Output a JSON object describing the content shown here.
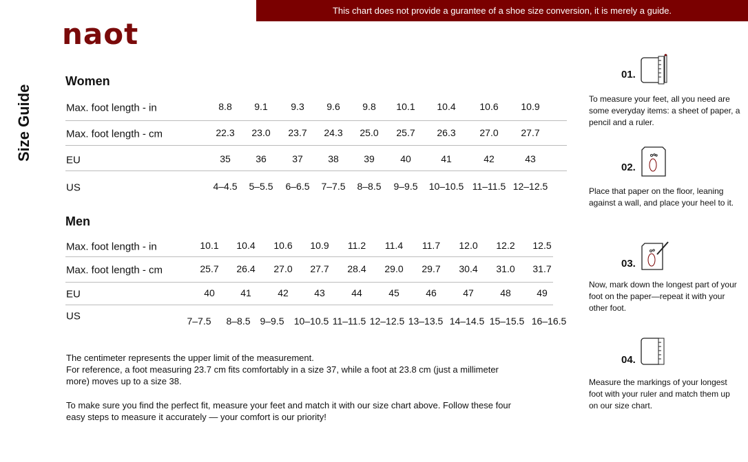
{
  "banner": "This chart does not provide a gurantee of a shoe size conversion, it is merely a guide.",
  "logo": "Naot",
  "title": "Size Guide",
  "colors": {
    "brand": "#7a0000"
  },
  "women": {
    "heading": "Women",
    "rows": [
      {
        "label": "Max. foot length - in",
        "values": [
          "8.8",
          "9.1",
          "9.3",
          "9.6",
          "9.8",
          "10.1",
          "10.4",
          "10.6",
          "10.9"
        ]
      },
      {
        "label": "Max. foot length - cm",
        "values": [
          "22.3",
          "23.0",
          "23.7",
          "24.3",
          "25.0",
          "25.7",
          "26.3",
          "27.0",
          "27.7"
        ]
      },
      {
        "label": "EU",
        "values": [
          "35",
          "36",
          "37",
          "38",
          "39",
          "40",
          "41",
          "42",
          "43"
        ]
      },
      {
        "label": "US",
        "values": [
          "4–4.5",
          "5–5.5",
          "6–6.5",
          "7–7.5",
          "8–8.5",
          "9–9.5",
          "10–10.5",
          "11–11.5",
          "12–12.5"
        ]
      }
    ]
  },
  "men": {
    "heading": "Men",
    "rows": [
      {
        "label": "Max. foot length - in",
        "values": [
          "10.1",
          "10.4",
          "10.6",
          "10.9",
          "11.2",
          "11.4",
          "11.7",
          "12.0",
          "12.2",
          "12.5"
        ]
      },
      {
        "label": "Max. foot length - cm",
        "values": [
          "25.7",
          "26.4",
          "27.0",
          "27.7",
          "28.4",
          "29.0",
          "29.7",
          "30.4",
          "31.0",
          "31.7"
        ]
      },
      {
        "label": "EU",
        "values": [
          "40",
          "41",
          "42",
          "43",
          "44",
          "45",
          "46",
          "47",
          "48",
          "49"
        ]
      },
      {
        "label": "US",
        "values": [
          "7–7.5",
          "8–8.5",
          "9–9.5",
          "10–10.5",
          "11–11.5",
          "12–12.5",
          "13–13.5",
          "14–14.5",
          "15–15.5",
          "16–16.5"
        ]
      }
    ]
  },
  "notes": {
    "p1": "The centimeter represents the upper limit of the measurement.\nFor reference, a foot measuring 23.7 cm fits comfortably in a size 37, while a foot at 23.8 cm (just a millimeter more) moves up to a size 38.",
    "p2": "To make sure you find the perfect fit, measure your feet and match it with our size chart above. Follow these four easy steps to measure it accurately — your comfort is our priority!"
  },
  "steps": [
    {
      "num": "01.",
      "icon": "paper-ruler-pencil-icon",
      "text": "To measure your feet, all you need are some everyday items: a sheet of paper, a pencil and a ruler."
    },
    {
      "num": "02.",
      "icon": "paper-foot-icon",
      "text": "Place that paper on the floor, leaning against a wall, and place your heel to it."
    },
    {
      "num": "03.",
      "icon": "paper-foot-pencil-icon",
      "text": "Now, mark down the longest part of your foot on the paper—repeat it with your other foot."
    },
    {
      "num": "04.",
      "icon": "paper-ruler-icon",
      "text": "Measure the markings of your longest foot with your ruler and match them up on our size chart."
    }
  ]
}
